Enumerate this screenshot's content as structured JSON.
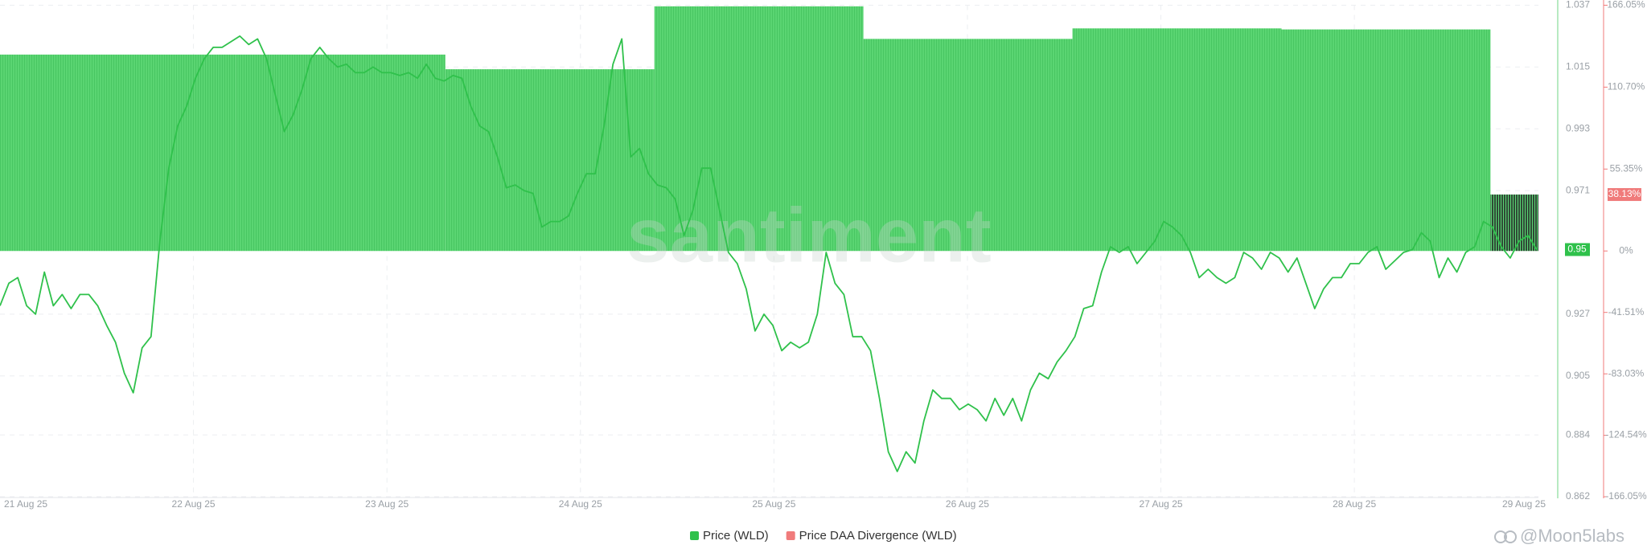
{
  "chart_data": {
    "type": "line",
    "watermark": "santiment",
    "credit": "@Moon5labs",
    "xticks": [
      "21 Aug 25",
      "22 Aug 25",
      "23 Aug 25",
      "24 Aug 25",
      "25 Aug 25",
      "26 Aug 25",
      "27 Aug 25",
      "28 Aug 25",
      "29 Aug 25"
    ],
    "ylim": [
      0.862,
      1.037
    ],
    "yticks": [
      0.862,
      0.884,
      0.905,
      0.927,
      0.971,
      0.993,
      1.015,
      1.037
    ],
    "y2lim": [
      -166.05,
      166.05
    ],
    "y2ticks": [
      {
        "value": 166.05,
        "label": "166.05%"
      },
      {
        "value": 110.7,
        "label": "110.70%"
      },
      {
        "value": 55.35,
        "label": "55.35%"
      },
      {
        "value": 0,
        "label": "0%"
      },
      {
        "value": -41.51,
        "label": "-41.51%"
      },
      {
        "value": -83.03,
        "label": "-83.03%"
      },
      {
        "value": -124.54,
        "label": "-124.54%"
      },
      {
        "value": -166.05,
        "label": "-166.05%"
      }
    ],
    "price_marker": 0.95,
    "divergence_marker": {
      "value": 38.13,
      "label": "38.13%"
    },
    "grid": true,
    "legend": "bottom",
    "series": [
      {
        "name": "Price DAA Divergence (WLD)",
        "type": "bar",
        "axis": "y2",
        "color": "#f07b7b",
        "bar_color": "#5ad572",
        "current_color": "#2f4a36",
        "values": [
          132.7,
          132.7,
          132.7,
          122.8,
          165.3,
          143.3,
          150.4,
          149.7,
          38.13
        ]
      },
      {
        "name": "Price (WLD)",
        "type": "line",
        "color": "#2fc14b",
        "values": [
          0.93,
          0.938,
          0.94,
          0.93,
          0.927,
          0.942,
          0.93,
          0.934,
          0.929,
          0.934,
          0.934,
          0.93,
          0.923,
          0.917,
          0.906,
          0.899,
          0.915,
          0.919,
          0.953,
          0.979,
          0.994,
          1.001,
          1.011,
          1.018,
          1.022,
          1.022,
          1.024,
          1.026,
          1.023,
          1.025,
          1.018,
          1.005,
          0.992,
          0.998,
          1.007,
          1.018,
          1.022,
          1.018,
          1.015,
          1.016,
          1.013,
          1.013,
          1.015,
          1.013,
          1.013,
          1.012,
          1.013,
          1.011,
          1.016,
          1.011,
          1.01,
          1.012,
          1.011,
          1.001,
          0.994,
          0.992,
          0.983,
          0.972,
          0.973,
          0.971,
          0.97,
          0.958,
          0.96,
          0.96,
          0.962,
          0.97,
          0.977,
          0.977,
          0.994,
          1.016,
          1.025,
          0.983,
          0.986,
          0.977,
          0.973,
          0.972,
          0.968,
          0.955,
          0.964,
          0.979,
          0.979,
          0.964,
          0.949,
          0.945,
          0.936,
          0.921,
          0.927,
          0.923,
          0.914,
          0.917,
          0.915,
          0.917,
          0.927,
          0.949,
          0.938,
          0.934,
          0.919,
          0.919,
          0.914,
          0.897,
          0.878,
          0.871,
          0.878,
          0.874,
          0.889,
          0.9,
          0.897,
          0.897,
          0.893,
          0.895,
          0.893,
          0.889,
          0.897,
          0.891,
          0.897,
          0.889,
          0.9,
          0.906,
          0.904,
          0.91,
          0.914,
          0.919,
          0.929,
          0.93,
          0.942,
          0.951,
          0.949,
          0.951,
          0.945,
          0.949,
          0.953,
          0.96,
          0.958,
          0.955,
          0.949,
          0.94,
          0.943,
          0.94,
          0.938,
          0.94,
          0.949,
          0.947,
          0.943,
          0.949,
          0.947,
          0.942,
          0.947,
          0.938,
          0.929,
          0.936,
          0.94,
          0.94,
          0.945,
          0.945,
          0.949,
          0.951,
          0.943,
          0.946,
          0.949,
          0.95,
          0.956,
          0.953,
          0.94,
          0.947,
          0.942,
          0.949,
          0.951,
          0.96,
          0.958,
          0.951,
          0.947,
          0.953,
          0.955,
          0.95
        ]
      }
    ]
  }
}
